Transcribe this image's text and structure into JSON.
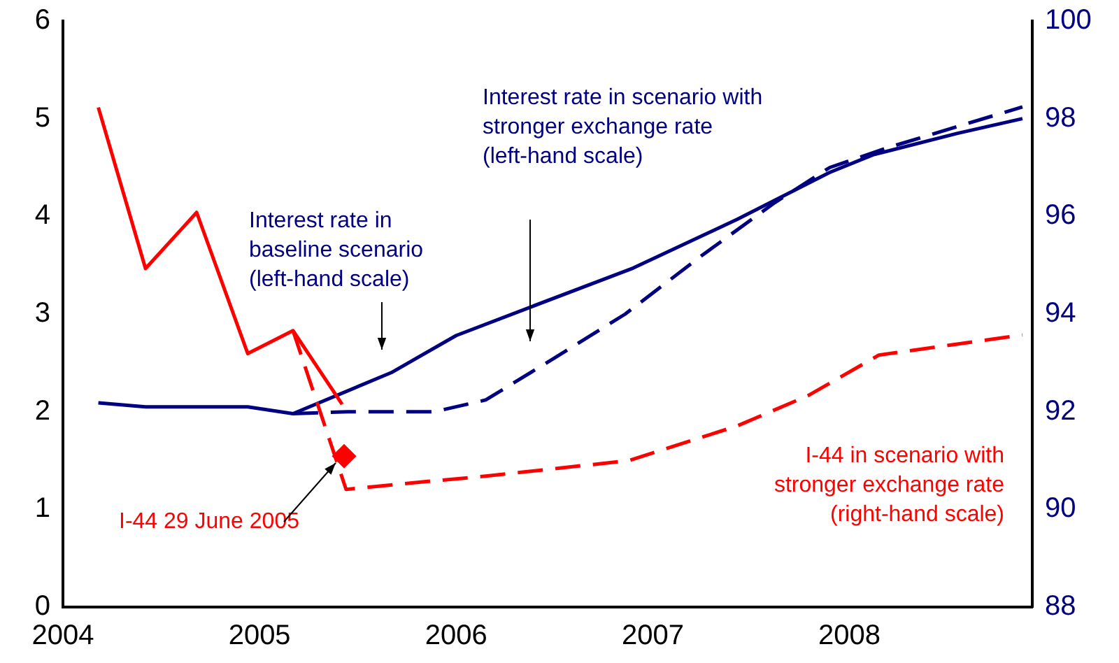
{
  "chart_data": {
    "type": "line",
    "xlim": [
      2004,
      2008.93
    ],
    "xticks": [
      2004,
      2005,
      2006,
      2007,
      2008
    ],
    "ylim": [
      0,
      6
    ],
    "yticks": [
      0,
      1,
      2,
      3,
      4,
      5,
      6
    ],
    "y2lim": [
      88,
      100
    ],
    "y2ticks": [
      88,
      90,
      92,
      94,
      96,
      98,
      100
    ],
    "grid": false,
    "legend": false,
    "marker": "none",
    "series": [
      {
        "color": "#ff0000",
        "axis": "y2",
        "line_style": "solid",
        "x": [
          2004.18,
          2004.42,
          2004.68,
          2004.94,
          2005.17,
          2005.42
        ],
        "values": [
          98.23,
          94.93,
          96.08,
          93.19,
          93.66,
          92.15
        ]
      },
      {
        "name": "I-44 in scenario with stronger exchange rate (right-hand scale)",
        "color": "#ff0000",
        "axis": "y2",
        "line_style": "dashed",
        "x": [
          2005.17,
          2005.44,
          2005.82,
          2006.15,
          2006.88,
          2007.43,
          2007.79,
          2008.15,
          2008.88
        ],
        "values": [
          93.66,
          90.41,
          90.56,
          90.68,
          91.0,
          91.71,
          92.33,
          93.16,
          93.57
        ]
      },
      {
        "name": "Interest rate in baseline scenario (left-hand scale)",
        "color": "#000080",
        "line_style": "solid",
        "x": [
          2004.18,
          2004.42,
          2004.94,
          2005.17,
          2005.67,
          2006.0,
          2006.39,
          2006.9,
          2007.43,
          2007.9,
          2008.12,
          2008.55,
          2008.88
        ],
        "values": [
          2.09,
          2.05,
          2.05,
          1.98,
          2.4,
          2.78,
          3.08,
          3.47,
          3.97,
          4.45,
          4.63,
          4.85,
          5.0
        ]
      },
      {
        "name": "Interest rate in scenario with stronger exchange rate (left-hand scale)",
        "color": "#000080",
        "line_style": "dashed",
        "x": [
          2005.17,
          2005.45,
          2005.89,
          2006.15,
          2006.5,
          2006.86,
          2007.25,
          2007.62,
          2007.9,
          2008.19,
          2008.55,
          2008.88
        ],
        "values": [
          1.98,
          2.0,
          2.0,
          2.12,
          2.55,
          3.0,
          3.6,
          4.14,
          4.5,
          4.7,
          4.92,
          5.12
        ]
      },
      {
        "name": "I-44 29 June 2005",
        "type": "scatter",
        "marker": "diamond",
        "color": "#ff0000",
        "axis": "y2",
        "x": [
          2005.43
        ],
        "values": [
          91.09
        ]
      }
    ]
  }
}
